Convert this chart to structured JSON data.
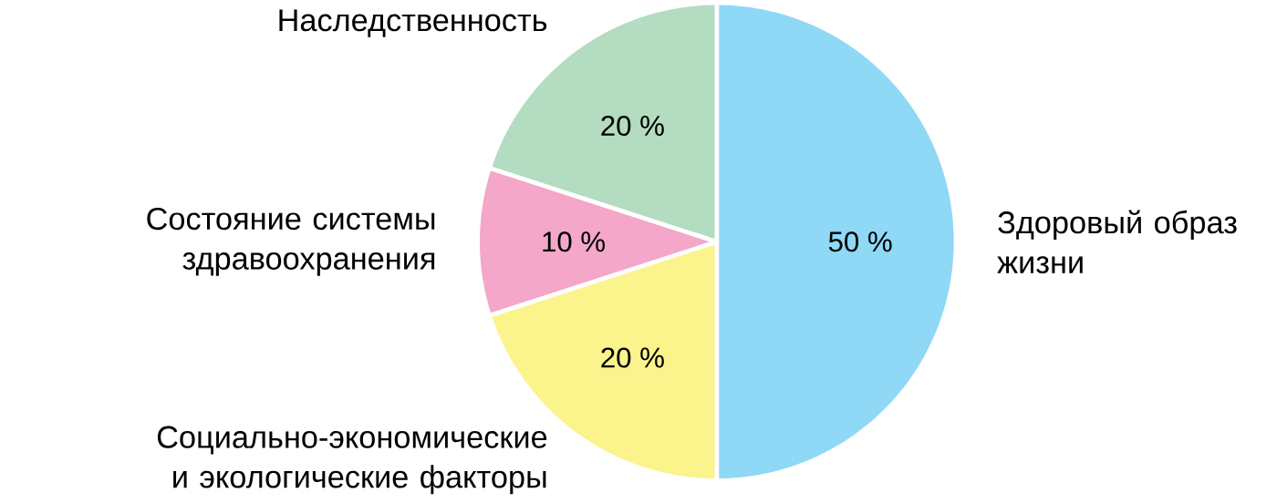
{
  "chart_data": {
    "type": "pie",
    "categories": [
      "Здоровый образ жизни",
      "Социально-экономические и экологические факторы",
      "Состояние системы здравоохранения",
      "Наследственность"
    ],
    "values": [
      50,
      20,
      10,
      20
    ],
    "value_labels": [
      "50 %",
      "20 %",
      "10 %",
      "20 %"
    ],
    "colors": [
      "#8fd8f6",
      "#fbf38c",
      "#f4a7c9",
      "#b4dcc0"
    ]
  }
}
